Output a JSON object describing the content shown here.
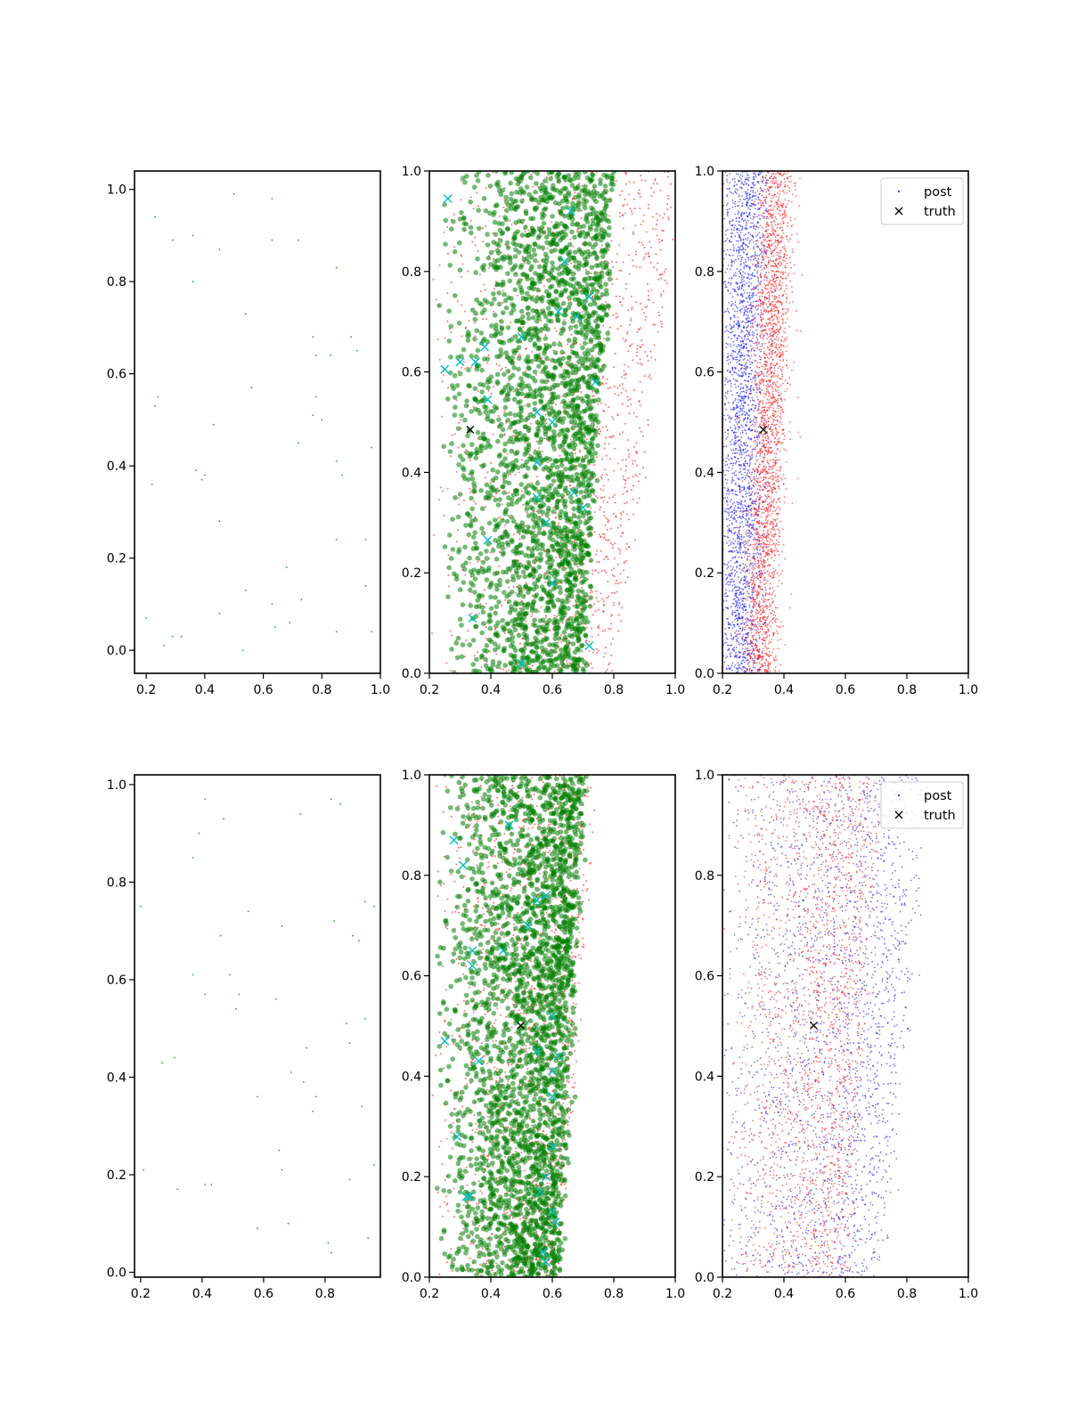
{
  "colors": {
    "scatter_small": "#2ca02c",
    "green_points": "#008000",
    "red_points": "#ff0000",
    "blue_points": "#0000ff",
    "cyan_marks": "#00bfbf",
    "truth_mark": "#000000",
    "axes": "#000000"
  },
  "chart_data": [
    {
      "type": "scatter",
      "panel": "row1-col1",
      "xlim": [
        0.16,
        1.0
      ],
      "ylim": [
        -0.05,
        1.04
      ],
      "xticks": [
        "0.2",
        "0.4",
        "0.6",
        "0.8",
        "1.0"
      ],
      "yticks": [
        "0.0",
        "0.2",
        "0.4",
        "0.6",
        "0.8",
        "1.0"
      ],
      "series": [
        {
          "marker": "dot",
          "color": "#2ca02c",
          "x": [
            0.5,
            0.63,
            0.23,
            0.29,
            0.36,
            0.45,
            0.63,
            0.72,
            0.85,
            0.36,
            0.54,
            0.77,
            0.9,
            0.78,
            0.83,
            0.92,
            0.24,
            0.23,
            0.56,
            0.78,
            0.43,
            0.77,
            0.8,
            0.72,
            0.97,
            0.85,
            0.37,
            0.4,
            0.39,
            0.87,
            0.22,
            0.45,
            0.85,
            0.95,
            0.68,
            0.54,
            0.63,
            0.73,
            0.45,
            0.95,
            0.2,
            0.26,
            0.29,
            0.32,
            0.69,
            0.64,
            0.85,
            0.97,
            0.53
          ],
          "y": [
            0.99,
            0.98,
            0.94,
            0.89,
            0.9,
            0.87,
            0.89,
            0.89,
            0.83,
            0.8,
            0.73,
            0.68,
            0.68,
            0.64,
            0.64,
            0.65,
            0.55,
            0.53,
            0.57,
            0.55,
            0.49,
            0.51,
            0.5,
            0.45,
            0.44,
            0.41,
            0.39,
            0.38,
            0.37,
            0.38,
            0.36,
            0.28,
            0.24,
            0.24,
            0.18,
            0.13,
            0.1,
            0.11,
            0.08,
            0.14,
            0.07,
            0.01,
            0.03,
            0.03,
            0.06,
            0.05,
            0.04,
            0.04,
            0.0
          ]
        }
      ]
    },
    {
      "type": "scatter",
      "panel": "row1-col2",
      "xlim": [
        0.2,
        1.0
      ],
      "ylim": [
        0.0,
        1.0
      ],
      "xticks": [
        "0.2",
        "0.4",
        "0.6",
        "0.8",
        "1.0"
      ],
      "yticks": [
        "0.0",
        "0.2",
        "0.4",
        "0.6",
        "0.8",
        "1.0"
      ],
      "series": [
        {
          "marker": "x",
          "color": "#00bfbf",
          "x": [
            0.26,
            0.25,
            0.3,
            0.35,
            0.38,
            0.39,
            0.39,
            0.5,
            0.55,
            0.6,
            0.62,
            0.64,
            0.66,
            0.7,
            0.72,
            0.74,
            0.55,
            0.6,
            0.67,
            0.34,
            0.5,
            0.55,
            0.68,
            0.72,
            0.58
          ],
          "y": [
            0.945,
            0.605,
            0.62,
            0.62,
            0.65,
            0.545,
            0.265,
            0.67,
            0.52,
            0.5,
            0.72,
            0.82,
            0.92,
            0.33,
            0.055,
            0.58,
            0.35,
            0.18,
            0.36,
            0.11,
            0.02,
            0.42,
            0.71,
            0.75,
            0.3
          ]
        },
        {
          "marker": "x",
          "color": "#000000",
          "x": [
            0.333
          ],
          "y": [
            0.485
          ]
        }
      ]
    },
    {
      "type": "scatter",
      "panel": "row1-col3",
      "xlim": [
        0.2,
        1.0
      ],
      "ylim": [
        0.0,
        1.0
      ],
      "xticks": [
        "0.2",
        "0.4",
        "0.6",
        "0.8",
        "1.0"
      ],
      "yticks": [
        "0.0",
        "0.2",
        "0.4",
        "0.6",
        "0.8",
        "1.0"
      ],
      "legend": [
        "post",
        "truth"
      ],
      "legend_loc": "top-right",
      "series": [
        {
          "name": "truth",
          "marker": "x",
          "color": "#000000",
          "x": [
            0.333
          ],
          "y": [
            0.485
          ]
        }
      ]
    },
    {
      "type": "scatter",
      "panel": "row2-col1",
      "xlim": [
        0.18,
        0.98
      ],
      "ylim": [
        -0.01,
        1.02
      ],
      "xticks": [
        "0.2",
        "0.4",
        "0.6",
        "0.8"
      ],
      "yticks": [
        "0.0",
        "0.2",
        "0.4",
        "0.6",
        "0.8",
        "1.0"
      ],
      "series": [
        {
          "marker": "dot",
          "color": "#2ca02c",
          "x": [
            0.41,
            0.82,
            0.85,
            0.72,
            0.47,
            0.39,
            0.37,
            0.2,
            0.55,
            0.83,
            0.93,
            0.96,
            0.66,
            0.46,
            0.89,
            0.91,
            0.49,
            0.37,
            0.41,
            0.52,
            0.64,
            0.51,
            0.87,
            0.93,
            0.88,
            0.74,
            0.27,
            0.31,
            0.69,
            0.73,
            0.77,
            0.76,
            0.58,
            0.92,
            0.21,
            0.65,
            0.66,
            0.96,
            0.41,
            0.43,
            0.88,
            0.32,
            0.58,
            0.68,
            0.94,
            0.81,
            0.82
          ],
          "y": [
            0.97,
            0.97,
            0.96,
            0.94,
            0.93,
            0.9,
            0.85,
            0.75,
            0.74,
            0.72,
            0.76,
            0.75,
            0.71,
            0.69,
            0.69,
            0.68,
            0.61,
            0.61,
            0.57,
            0.57,
            0.56,
            0.54,
            0.51,
            0.52,
            0.47,
            0.46,
            0.43,
            0.44,
            0.41,
            0.39,
            0.36,
            0.33,
            0.36,
            0.34,
            0.21,
            0.25,
            0.21,
            0.22,
            0.18,
            0.18,
            0.19,
            0.17,
            0.09,
            0.1,
            0.07,
            0.06,
            0.04
          ]
        }
      ]
    },
    {
      "type": "scatter",
      "panel": "row2-col2",
      "xlim": [
        0.2,
        1.0
      ],
      "ylim": [
        0.0,
        1.0
      ],
      "xticks": [
        "0.2",
        "0.4",
        "0.6",
        "0.8",
        "1.0"
      ],
      "yticks": [
        "0.0",
        "0.2",
        "0.4",
        "0.6",
        "0.8",
        "1.0"
      ],
      "series": [
        {
          "marker": "x",
          "color": "#00bfbf",
          "x": [
            0.28,
            0.31,
            0.34,
            0.34,
            0.32,
            0.36,
            0.25,
            0.29,
            0.33,
            0.44,
            0.46,
            0.55,
            0.58,
            0.6,
            0.6,
            0.62,
            0.58,
            0.56,
            0.6,
            0.61,
            0.57,
            0.58,
            0.6,
            0.52,
            0.55,
            0.6
          ],
          "y": [
            0.87,
            0.82,
            0.65,
            0.62,
            0.16,
            0.43,
            0.47,
            0.28,
            0.16,
            0.65,
            0.9,
            0.75,
            0.76,
            0.52,
            0.41,
            0.44,
            0.2,
            0.17,
            0.13,
            0.11,
            0.05,
            0.03,
            0.36,
            0.7,
            0.45,
            0.26
          ]
        },
        {
          "marker": "x",
          "color": "#000000",
          "x": [
            0.497
          ],
          "y": [
            0.501
          ]
        }
      ]
    },
    {
      "type": "scatter",
      "panel": "row2-col3",
      "xlim": [
        0.2,
        1.0
      ],
      "ylim": [
        0.0,
        1.0
      ],
      "xticks": [
        "0.2",
        "0.4",
        "0.6",
        "0.8",
        "1.0"
      ],
      "yticks": [
        "0.0",
        "0.2",
        "0.4",
        "0.6",
        "0.8",
        "1.0"
      ],
      "legend": [
        "post",
        "truth"
      ],
      "legend_loc": "top-right",
      "series": [
        {
          "name": "truth",
          "marker": "x",
          "color": "#000000",
          "x": [
            0.497
          ],
          "y": [
            0.501
          ]
        }
      ]
    }
  ]
}
